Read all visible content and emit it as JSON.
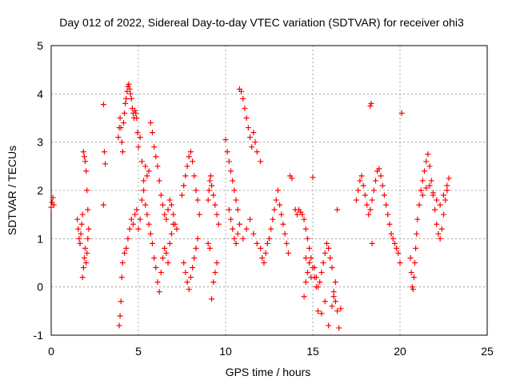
{
  "chart_data": {
    "type": "scatter",
    "title": "Day 012 of 2022, Sidereal Day-to-day VTEC variation (SDTVAR) for receiver ohi3",
    "xlabel": "GPS time / hours",
    "ylabel": "SDTVAR / TECUs",
    "xlim": [
      0,
      25
    ],
    "ylim": [
      -1,
      5
    ],
    "xticks": [
      0,
      5,
      10,
      15,
      20,
      25
    ],
    "yticks": [
      -1,
      0,
      1,
      2,
      3,
      4,
      5
    ],
    "grid": true,
    "marker": "+",
    "color": "#ff0000",
    "series": [
      {
        "name": "SDTVAR",
        "x": [
          0.0,
          0.05,
          0.1,
          0.15,
          1.5,
          1.55,
          1.6,
          1.65,
          1.7,
          1.75,
          1.8,
          1.85,
          1.9,
          1.95,
          2.0,
          2.05,
          2.1,
          2.15,
          1.8,
          1.85,
          1.9,
          1.95,
          2.0,
          2.05,
          2.1,
          3.0,
          3.05,
          3.1,
          3.0,
          3.85,
          3.9,
          3.95,
          4.0,
          4.05,
          4.1,
          4.15,
          4.2,
          4.25,
          4.3,
          4.35,
          4.4,
          4.45,
          4.5,
          4.55,
          4.6,
          4.65,
          4.7,
          4.75,
          4.8,
          4.85,
          4.9,
          4.95,
          5.0,
          5.1,
          5.2,
          5.3,
          5.4,
          5.5,
          5.6,
          5.7,
          5.8,
          5.9,
          6.0,
          6.1,
          6.2,
          6.3,
          6.4,
          6.5,
          6.6,
          6.7,
          6.8,
          6.9,
          7.0,
          7.1,
          7.2,
          3.9,
          3.95,
          4.0,
          4.05,
          4.1,
          4.2,
          4.3,
          4.4,
          4.5,
          4.6,
          4.7,
          4.8,
          4.9,
          5.0,
          5.1,
          5.2,
          5.3,
          5.4,
          5.5,
          5.6,
          5.7,
          5.8,
          5.9,
          6.0,
          6.1,
          6.2,
          6.3,
          6.4,
          6.5,
          6.6,
          6.7,
          6.8,
          6.9,
          7.0,
          7.5,
          7.6,
          7.7,
          7.8,
          7.9,
          8.0,
          8.1,
          8.2,
          8.3,
          8.4,
          8.5,
          7.6,
          7.7,
          7.8,
          7.9,
          8.0,
          8.1,
          8.2,
          8.3,
          8.4,
          9.0,
          9.05,
          9.1,
          9.15,
          9.2,
          9.3,
          9.4,
          9.5,
          9.6,
          9.0,
          9.1,
          9.2,
          9.3,
          9.4,
          9.5,
          10.0,
          10.1,
          10.2,
          10.3,
          10.4,
          10.5,
          10.6,
          10.7,
          10.8,
          10.9,
          11.0,
          11.1,
          11.2,
          11.3,
          11.4,
          11.5,
          11.6,
          11.7,
          11.8,
          12.0,
          10.2,
          10.3,
          10.4,
          10.5,
          10.6,
          10.7,
          10.8,
          11.0,
          11.2,
          11.4,
          11.6,
          11.8,
          12.0,
          12.1,
          12.2,
          12.3,
          12.4,
          12.5,
          12.6,
          12.7,
          12.8,
          12.9,
          13.0,
          13.1,
          13.2,
          13.3,
          13.4,
          13.5,
          13.6,
          13.7,
          13.8,
          14.0,
          14.1,
          14.2,
          14.3,
          14.4,
          14.5,
          14.6,
          14.7,
          14.8,
          14.9,
          15.0,
          15.1,
          15.2,
          14.5,
          14.6,
          14.7,
          14.8,
          14.9,
          15.0,
          14.6,
          15.1,
          15.2,
          15.3,
          15.4,
          15.5,
          15.6,
          15.7,
          15.8,
          15.9,
          16.0,
          16.1,
          16.2,
          16.3,
          16.4,
          16.5,
          16.6,
          15.3,
          15.5,
          15.7,
          15.9,
          16.1,
          16.2,
          16.3,
          16.4,
          17.5,
          17.6,
          17.7,
          17.8,
          17.9,
          18.0,
          18.1,
          18.2,
          18.3,
          18.4,
          18.5,
          18.6,
          18.7,
          18.8,
          18.9,
          19.0,
          19.1,
          19.2,
          19.3,
          19.4,
          19.5,
          19.6,
          19.7,
          19.8,
          19.9,
          20.0,
          20.1,
          18.3,
          18.35,
          18.4,
          20.6,
          20.65,
          20.7,
          20.75,
          20.8,
          20.85,
          20.9,
          20.95,
          21.0,
          21.1,
          21.2,
          21.3,
          21.4,
          21.5,
          21.6,
          21.7,
          21.8,
          21.9,
          22.0,
          22.1,
          22.2,
          22.3,
          22.4,
          22.5,
          22.6,
          22.7,
          22.8,
          21.3,
          21.5,
          21.7,
          21.9,
          22.1,
          22.3,
          22.5,
          22.7
        ],
        "y": [
          1.65,
          1.75,
          1.85,
          1.7,
          1.4,
          1.2,
          1.0,
          0.9,
          1.1,
          1.3,
          1.5,
          2.8,
          2.7,
          2.6,
          2.4,
          2.0,
          1.6,
          1.2,
          0.2,
          0.4,
          0.6,
          0.8,
          0.5,
          0.7,
          1.0,
          3.78,
          2.8,
          2.55,
          1.7,
          3.1,
          3.3,
          3.5,
          3.3,
          3.0,
          2.8,
          3.4,
          3.6,
          3.8,
          3.9,
          4.05,
          4.15,
          4.2,
          4.1,
          4.0,
          3.9,
          3.7,
          3.6,
          3.5,
          3.65,
          3.6,
          3.5,
          3.2,
          2.9,
          3.1,
          2.6,
          2.2,
          2.5,
          2.3,
          2.4,
          3.4,
          3.2,
          2.9,
          2.7,
          2.5,
          2.2,
          1.9,
          1.7,
          1.5,
          1.4,
          1.6,
          1.8,
          1.7,
          1.5,
          1.3,
          1.2,
          -0.8,
          -0.6,
          -0.3,
          0.2,
          0.5,
          0.7,
          0.8,
          1.0,
          1.2,
          1.4,
          1.3,
          1.5,
          1.6,
          1.2,
          1.4,
          1.8,
          2.0,
          1.7,
          1.5,
          1.3,
          1.1,
          0.9,
          0.6,
          0.4,
          0.1,
          -0.1,
          0.3,
          0.6,
          0.8,
          0.7,
          0.5,
          0.9,
          1.1,
          1.3,
          1.9,
          2.1,
          2.3,
          2.5,
          2.7,
          2.8,
          2.6,
          2.3,
          2.0,
          1.8,
          1.5,
          0.5,
          0.3,
          0.1,
          -0.05,
          0.2,
          0.4,
          0.6,
          0.8,
          1.0,
          1.8,
          2.0,
          2.2,
          2.3,
          2.1,
          1.9,
          1.7,
          1.5,
          1.3,
          0.9,
          0.8,
          -0.25,
          0.1,
          0.3,
          0.5,
          3.05,
          2.8,
          2.6,
          2.4,
          2.2,
          2.0,
          1.8,
          1.6,
          4.1,
          4.05,
          3.9,
          3.7,
          3.5,
          3.3,
          3.1,
          2.9,
          3.2,
          3.0,
          2.8,
          2.6,
          1.6,
          1.4,
          1.2,
          1.0,
          0.9,
          1.1,
          1.3,
          1.0,
          1.2,
          1.4,
          1.1,
          0.9,
          0.8,
          0.6,
          0.5,
          0.7,
          0.9,
          1.0,
          1.2,
          1.4,
          1.6,
          1.8,
          2.0,
          1.7,
          1.5,
          1.3,
          1.1,
          0.9,
          0.7,
          2.3,
          2.25,
          1.6,
          1.5,
          1.6,
          1.55,
          1.5,
          1.4,
          1.2,
          1.0,
          0.8,
          0.6,
          0.4,
          0.2,
          0.0,
          -0.2,
          0.1,
          0.3,
          0.5,
          0.2,
          2.27,
          0.6,
          0.4,
          0.2,
          0.0,
          0.1,
          0.3,
          0.5,
          0.7,
          0.9,
          0.8,
          0.6,
          0.4,
          -0.1,
          -0.3,
          -0.5,
          -0.85,
          -0.45,
          -0.5,
          -0.55,
          -0.3,
          -0.8,
          -0.4,
          -0.2,
          0.1,
          1.6,
          1.8,
          2.0,
          2.2,
          2.3,
          2.1,
          1.9,
          1.7,
          1.5,
          1.6,
          1.8,
          2.0,
          2.2,
          2.4,
          2.45,
          2.3,
          2.1,
          1.9,
          1.7,
          1.5,
          1.3,
          1.1,
          1.0,
          0.9,
          0.8,
          0.7,
          0.5,
          3.6,
          3.75,
          3.8,
          0.9,
          0.6,
          0.3,
          0.0,
          -0.05,
          0.2,
          0.5,
          0.8,
          1.1,
          1.4,
          1.7,
          2.0,
          2.2,
          2.4,
          2.6,
          2.75,
          2.5,
          2.2,
          1.9,
          1.6,
          1.3,
          1.1,
          1.0,
          1.2,
          1.5,
          1.8,
          2.1,
          2.25,
          1.9,
          2.05,
          2.1,
          1.95,
          1.8,
          1.7,
          1.9,
          2.0
        ]
      }
    ]
  }
}
